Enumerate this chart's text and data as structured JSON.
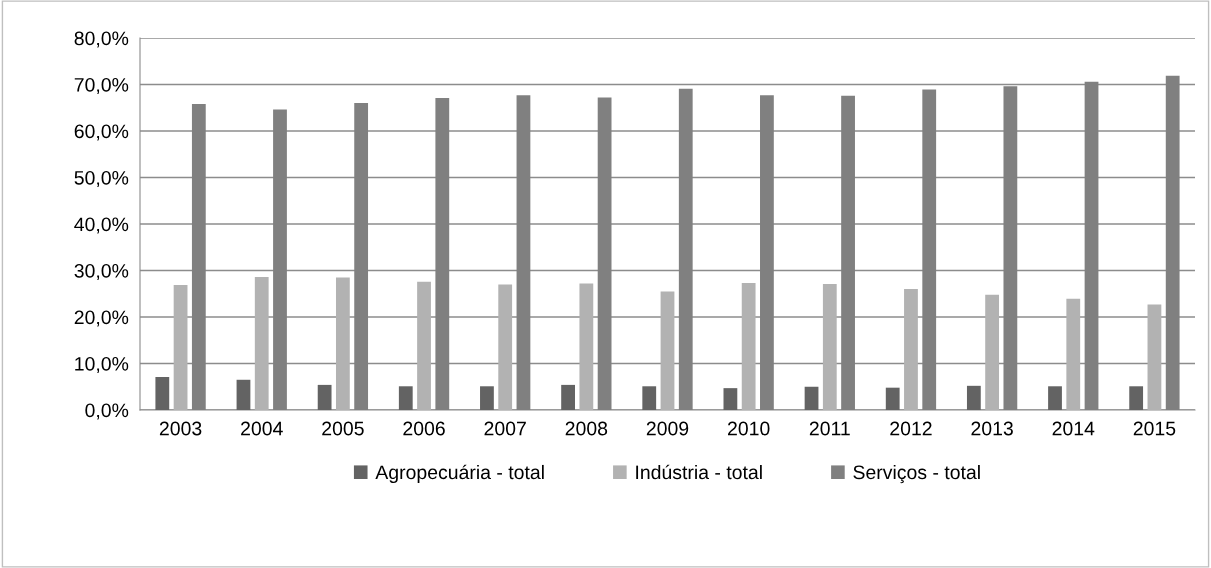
{
  "chart_data": {
    "type": "bar",
    "categories": [
      "2003",
      "2004",
      "2005",
      "2006",
      "2007",
      "2008",
      "2009",
      "2010",
      "2011",
      "2012",
      "2013",
      "2014",
      "2015"
    ],
    "series": [
      {
        "name": "Agropecuária - total",
        "color": "#636363",
        "values": [
          7.1,
          6.5,
          5.4,
          5.1,
          5.1,
          5.4,
          5.1,
          4.7,
          5.0,
          4.8,
          5.2,
          5.1,
          5.1
        ]
      },
      {
        "name": "Indústria - total",
        "color": "#b2b2b2",
        "values": [
          26.9,
          28.6,
          28.5,
          27.6,
          27.0,
          27.2,
          25.5,
          27.3,
          27.1,
          26.0,
          24.8,
          23.9,
          22.7
        ]
      },
      {
        "name": "Serviços - total",
        "color": "#808080",
        "values": [
          65.8,
          64.6,
          66.0,
          67.1,
          67.7,
          67.2,
          69.1,
          67.7,
          67.6,
          68.9,
          69.6,
          70.6,
          71.9
        ]
      }
    ],
    "ylim": [
      0,
      80
    ],
    "yticks": [
      {
        "value": 0,
        "label": "0,0%"
      },
      {
        "value": 10,
        "label": "10,0%"
      },
      {
        "value": 20,
        "label": "20,0%"
      },
      {
        "value": 30,
        "label": "30,0%"
      },
      {
        "value": 40,
        "label": "40,0%"
      },
      {
        "value": 50,
        "label": "50,0%"
      },
      {
        "value": 60,
        "label": "60,0%"
      },
      {
        "value": 70,
        "label": "70,0%"
      },
      {
        "value": 80,
        "label": "80,0%"
      }
    ],
    "grid": "y",
    "legend": "bottom"
  }
}
